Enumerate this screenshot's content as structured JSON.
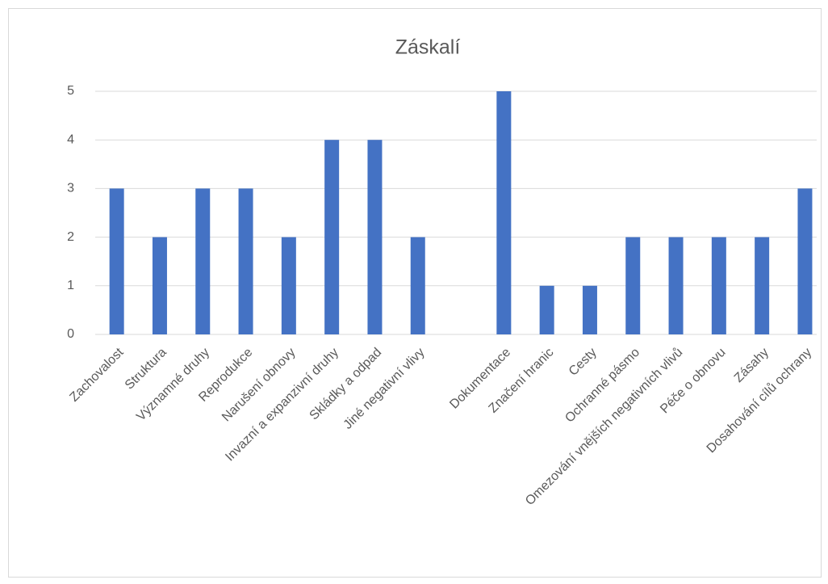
{
  "chart_data": {
    "type": "bar",
    "title": "Záskalí",
    "categories": [
      "Zachovalost",
      "Struktura",
      "Významné druhy",
      "Reprodukce",
      "Narušení obnovy",
      "Invazní a expanzivní druhy",
      "Skládky a odpad",
      "Jiné negativní vlivy",
      null,
      "Dokumentace",
      "Značení hranic",
      "Cesty",
      "Ochranné pásmo",
      "Omezování vnějších negativních vlivů",
      "Péče o obnovu",
      "Zásahy",
      "Dosahování cílů ochrany"
    ],
    "values": [
      3,
      2,
      3,
      3,
      2,
      4,
      4,
      2,
      null,
      5,
      1,
      1,
      2,
      2,
      2,
      2,
      3
    ],
    "color": "#4472c4",
    "ylim": [
      0,
      5
    ],
    "yticks": [
      0,
      1,
      2,
      3,
      4,
      5
    ],
    "grid": true
  }
}
